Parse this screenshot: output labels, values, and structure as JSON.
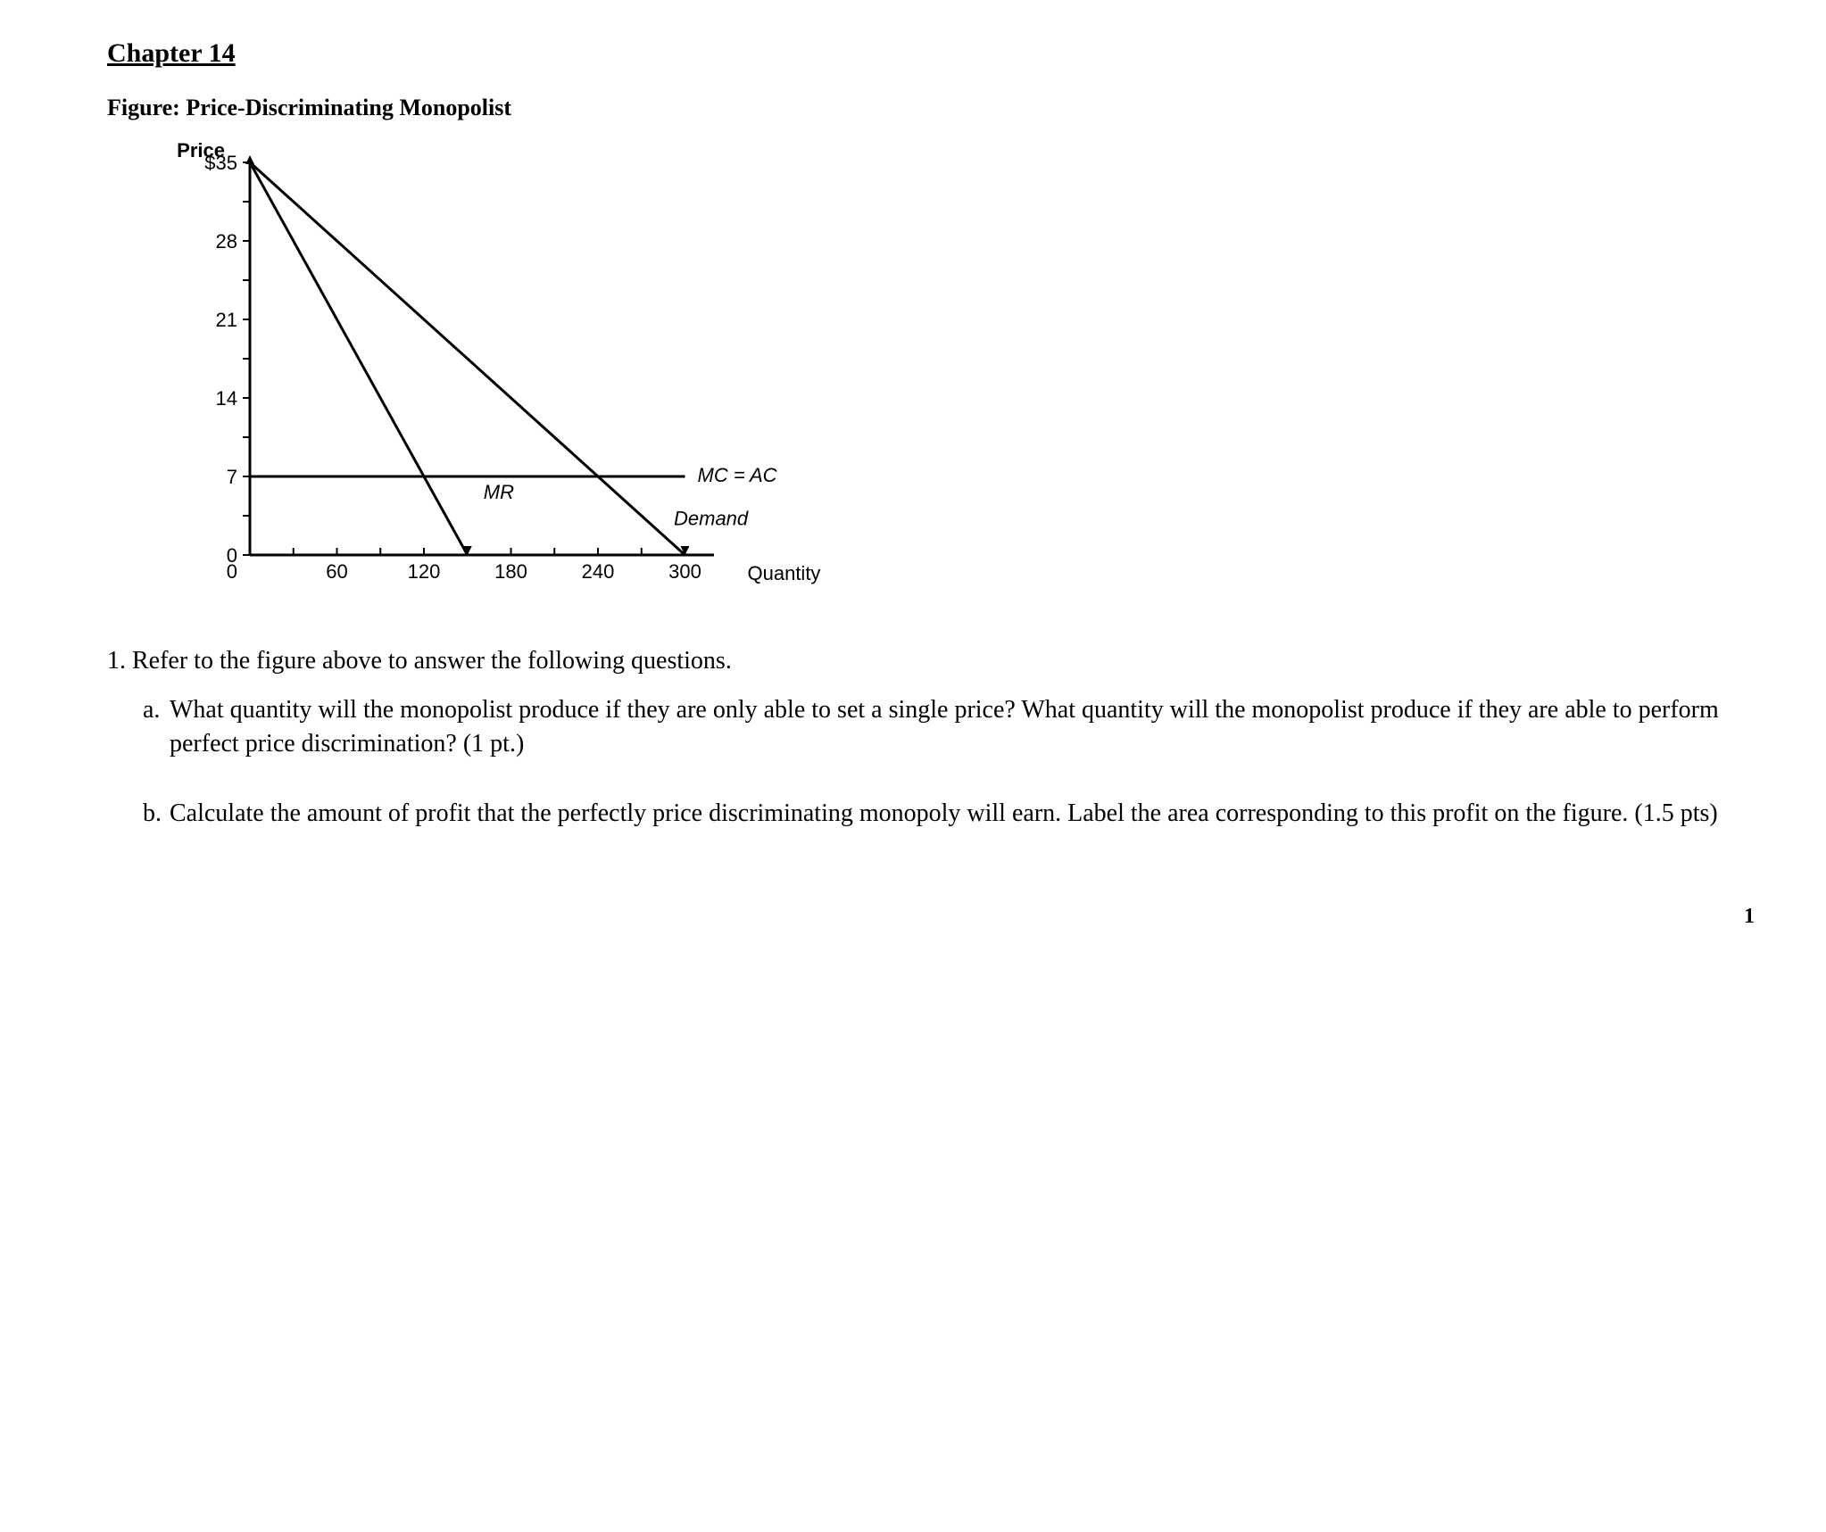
{
  "chapter": "Chapter 14",
  "figureTitle": "Figure: Price-Discriminating Monopolist",
  "chart": {
    "type": "line",
    "yAxis": {
      "label1": "Price",
      "label2": "$35",
      "ticks": [
        35,
        28,
        21,
        14,
        7,
        0
      ],
      "minorTicksBetween": 1,
      "ylim": [
        0,
        35
      ]
    },
    "xAxis": {
      "label": "Quantity",
      "ticks": [
        0,
        60,
        120,
        180,
        240,
        300
      ],
      "xlim": [
        0,
        320
      ],
      "labeledMajors": [
        60,
        120,
        180,
        240,
        300
      ],
      "minorInterval": 30
    },
    "curves": {
      "demand": {
        "label": "Demand",
        "x1": 0,
        "y1": 35,
        "x2": 300,
        "y2": 0,
        "stroke": "#000000",
        "width": 3
      },
      "mr": {
        "label": "MR",
        "x1": 0,
        "y1": 35,
        "x2": 150,
        "y2": 0,
        "stroke": "#000000",
        "width": 3
      },
      "mcac": {
        "label": "MC = AC",
        "xFrom": 0,
        "xTo": 300,
        "y": 7,
        "stroke": "#000000",
        "width": 3
      }
    },
    "background": "#ffffff",
    "axisColor": "#000000",
    "axisWidth": 3,
    "tickLen": 8
  },
  "q1": "1. Refer to the figure above to answer the following questions.",
  "qa_marker": "a.",
  "qa": "What quantity will the monopolist produce if they are only able to set a single price? What quantity will the monopolist produce if they are able to perform perfect price discrimination? (1 pt.)",
  "qb_marker": "b.",
  "qb": "Calculate the amount of profit that the perfectly price discriminating monopoly will earn. Label the area corresponding to this profit on the figure. (1.5 pts)",
  "pageNum": "1"
}
